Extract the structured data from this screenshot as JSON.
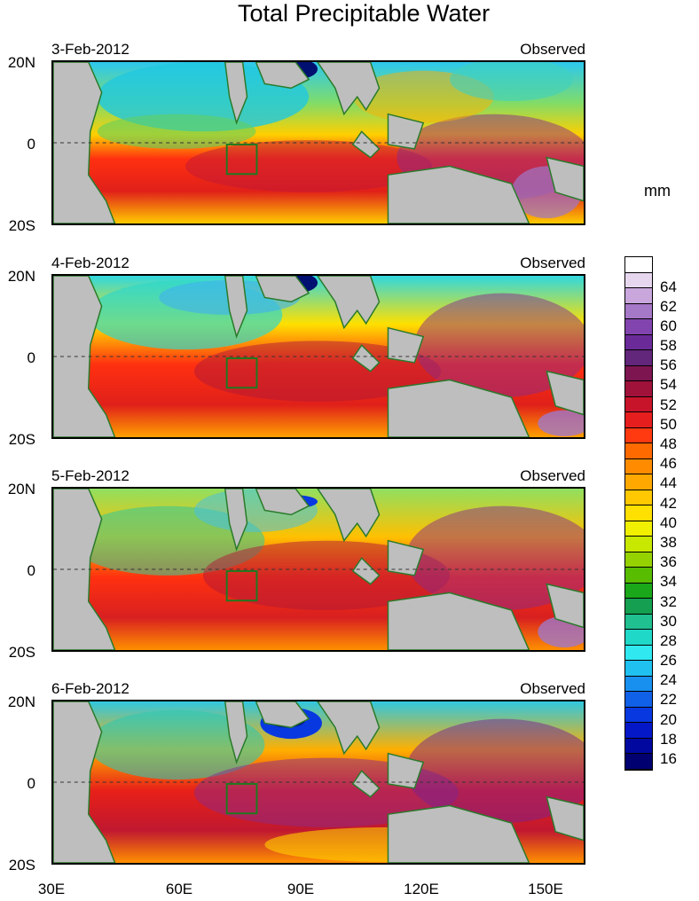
{
  "title": "Total Precipitable Water",
  "panels": [
    {
      "date": "3-Feb-2012",
      "source": "Observed"
    },
    {
      "date": "4-Feb-2012",
      "source": "Observed"
    },
    {
      "date": "5-Feb-2012",
      "source": "Observed"
    },
    {
      "date": "6-Feb-2012",
      "source": "Observed"
    }
  ],
  "lat_labels": [
    "20N",
    "0",
    "20S"
  ],
  "lon_labels": [
    "30E",
    "60E",
    "90E",
    "120E",
    "150E"
  ],
  "colorbar": {
    "unit": "mm",
    "labels": [
      "64",
      "62",
      "60",
      "58",
      "56",
      "54",
      "52",
      "50",
      "48",
      "46",
      "44",
      "42",
      "40",
      "38",
      "36",
      "34",
      "32",
      "30",
      "28",
      "26",
      "24",
      "22",
      "20",
      "18",
      "16"
    ],
    "colors_top_to_bottom": [
      "#ffffff",
      "#e6d7ee",
      "#c9a7dc",
      "#a678c8",
      "#8245b0",
      "#6a2a98",
      "#62267a",
      "#7d1650",
      "#a0123a",
      "#c8142a",
      "#e61e1e",
      "#ff3a10",
      "#ff6a00",
      "#ff8c00",
      "#ffa800",
      "#ffc800",
      "#ffe000",
      "#f0f000",
      "#c8e800",
      "#96d200",
      "#58bc00",
      "#1aa81a",
      "#14a050",
      "#20c090",
      "#20d8c8",
      "#30e8f0",
      "#20c0f0",
      "#1890f0",
      "#1060e8",
      "#0838e0",
      "#0418c8",
      "#0008a0",
      "#000070"
    ]
  },
  "legend_colors": {
    "land": "#bebebe",
    "coastline": "#2a7a2a",
    "box": "#1e7a1e"
  }
}
